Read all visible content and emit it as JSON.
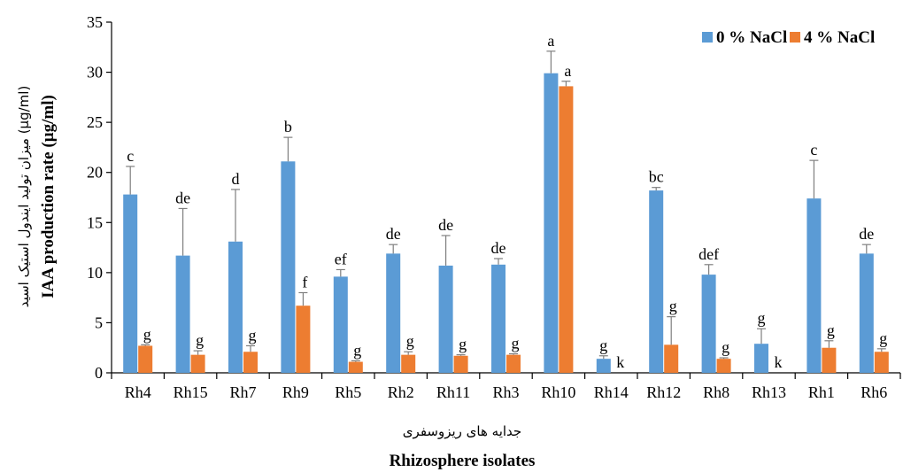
{
  "chart_data": {
    "type": "bar",
    "title": "",
    "ylabel": "IAA production rate (µg/ml)",
    "ylabel_fa": "میزان تولید ایندول استیک اسید (µg/ml)",
    "xlabel": "Rhizosphere isolates",
    "xlabel_fa": "جدایه های ریزوسفری",
    "ylim": [
      0,
      35
    ],
    "yticks": [
      0,
      5,
      10,
      15,
      20,
      25,
      30,
      35
    ],
    "categories": [
      "Rh4",
      "Rh15",
      "Rh7",
      "Rh9",
      "Rh5",
      "Rh2",
      "Rh11",
      "Rh3",
      "Rh10",
      "Rh14",
      "Rh12",
      "Rh8",
      "Rh13",
      "Rh1",
      "Rh6"
    ],
    "series": [
      {
        "name": "0 % NaCl",
        "color": "#5b9bd5",
        "values": [
          17.8,
          11.7,
          13.1,
          21.1,
          9.6,
          11.9,
          10.7,
          10.8,
          29.9,
          1.4,
          18.2,
          9.8,
          2.9,
          17.4,
          11.9
        ],
        "errors": [
          2.8,
          4.7,
          5.2,
          2.4,
          0.7,
          0.9,
          3.0,
          0.6,
          2.2,
          0.3,
          0.3,
          1.0,
          1.5,
          3.8,
          0.9
        ],
        "labels": [
          "c",
          "de",
          "d",
          "b",
          "ef",
          "de",
          "de",
          "de",
          "a",
          "g",
          "bc",
          "def",
          "g",
          "c",
          "de"
        ]
      },
      {
        "name": "4 % NaCl",
        "color": "#ed7d31",
        "values": [
          2.7,
          1.8,
          2.1,
          6.7,
          1.1,
          1.8,
          1.7,
          1.8,
          28.6,
          0,
          2.8,
          1.4,
          0,
          2.5,
          2.1
        ],
        "errors": [
          0.1,
          0.4,
          0.6,
          1.3,
          0.1,
          0.3,
          0.1,
          0.1,
          0.5,
          0,
          2.8,
          0.1,
          0,
          0.7,
          0.3
        ],
        "labels": [
          "g",
          "g",
          "g",
          "f",
          "g",
          "g",
          "g",
          "g",
          "a",
          "k",
          "g",
          "g",
          "k",
          "g",
          "g"
        ]
      }
    ],
    "legend_position": "top-right",
    "grid": false
  }
}
